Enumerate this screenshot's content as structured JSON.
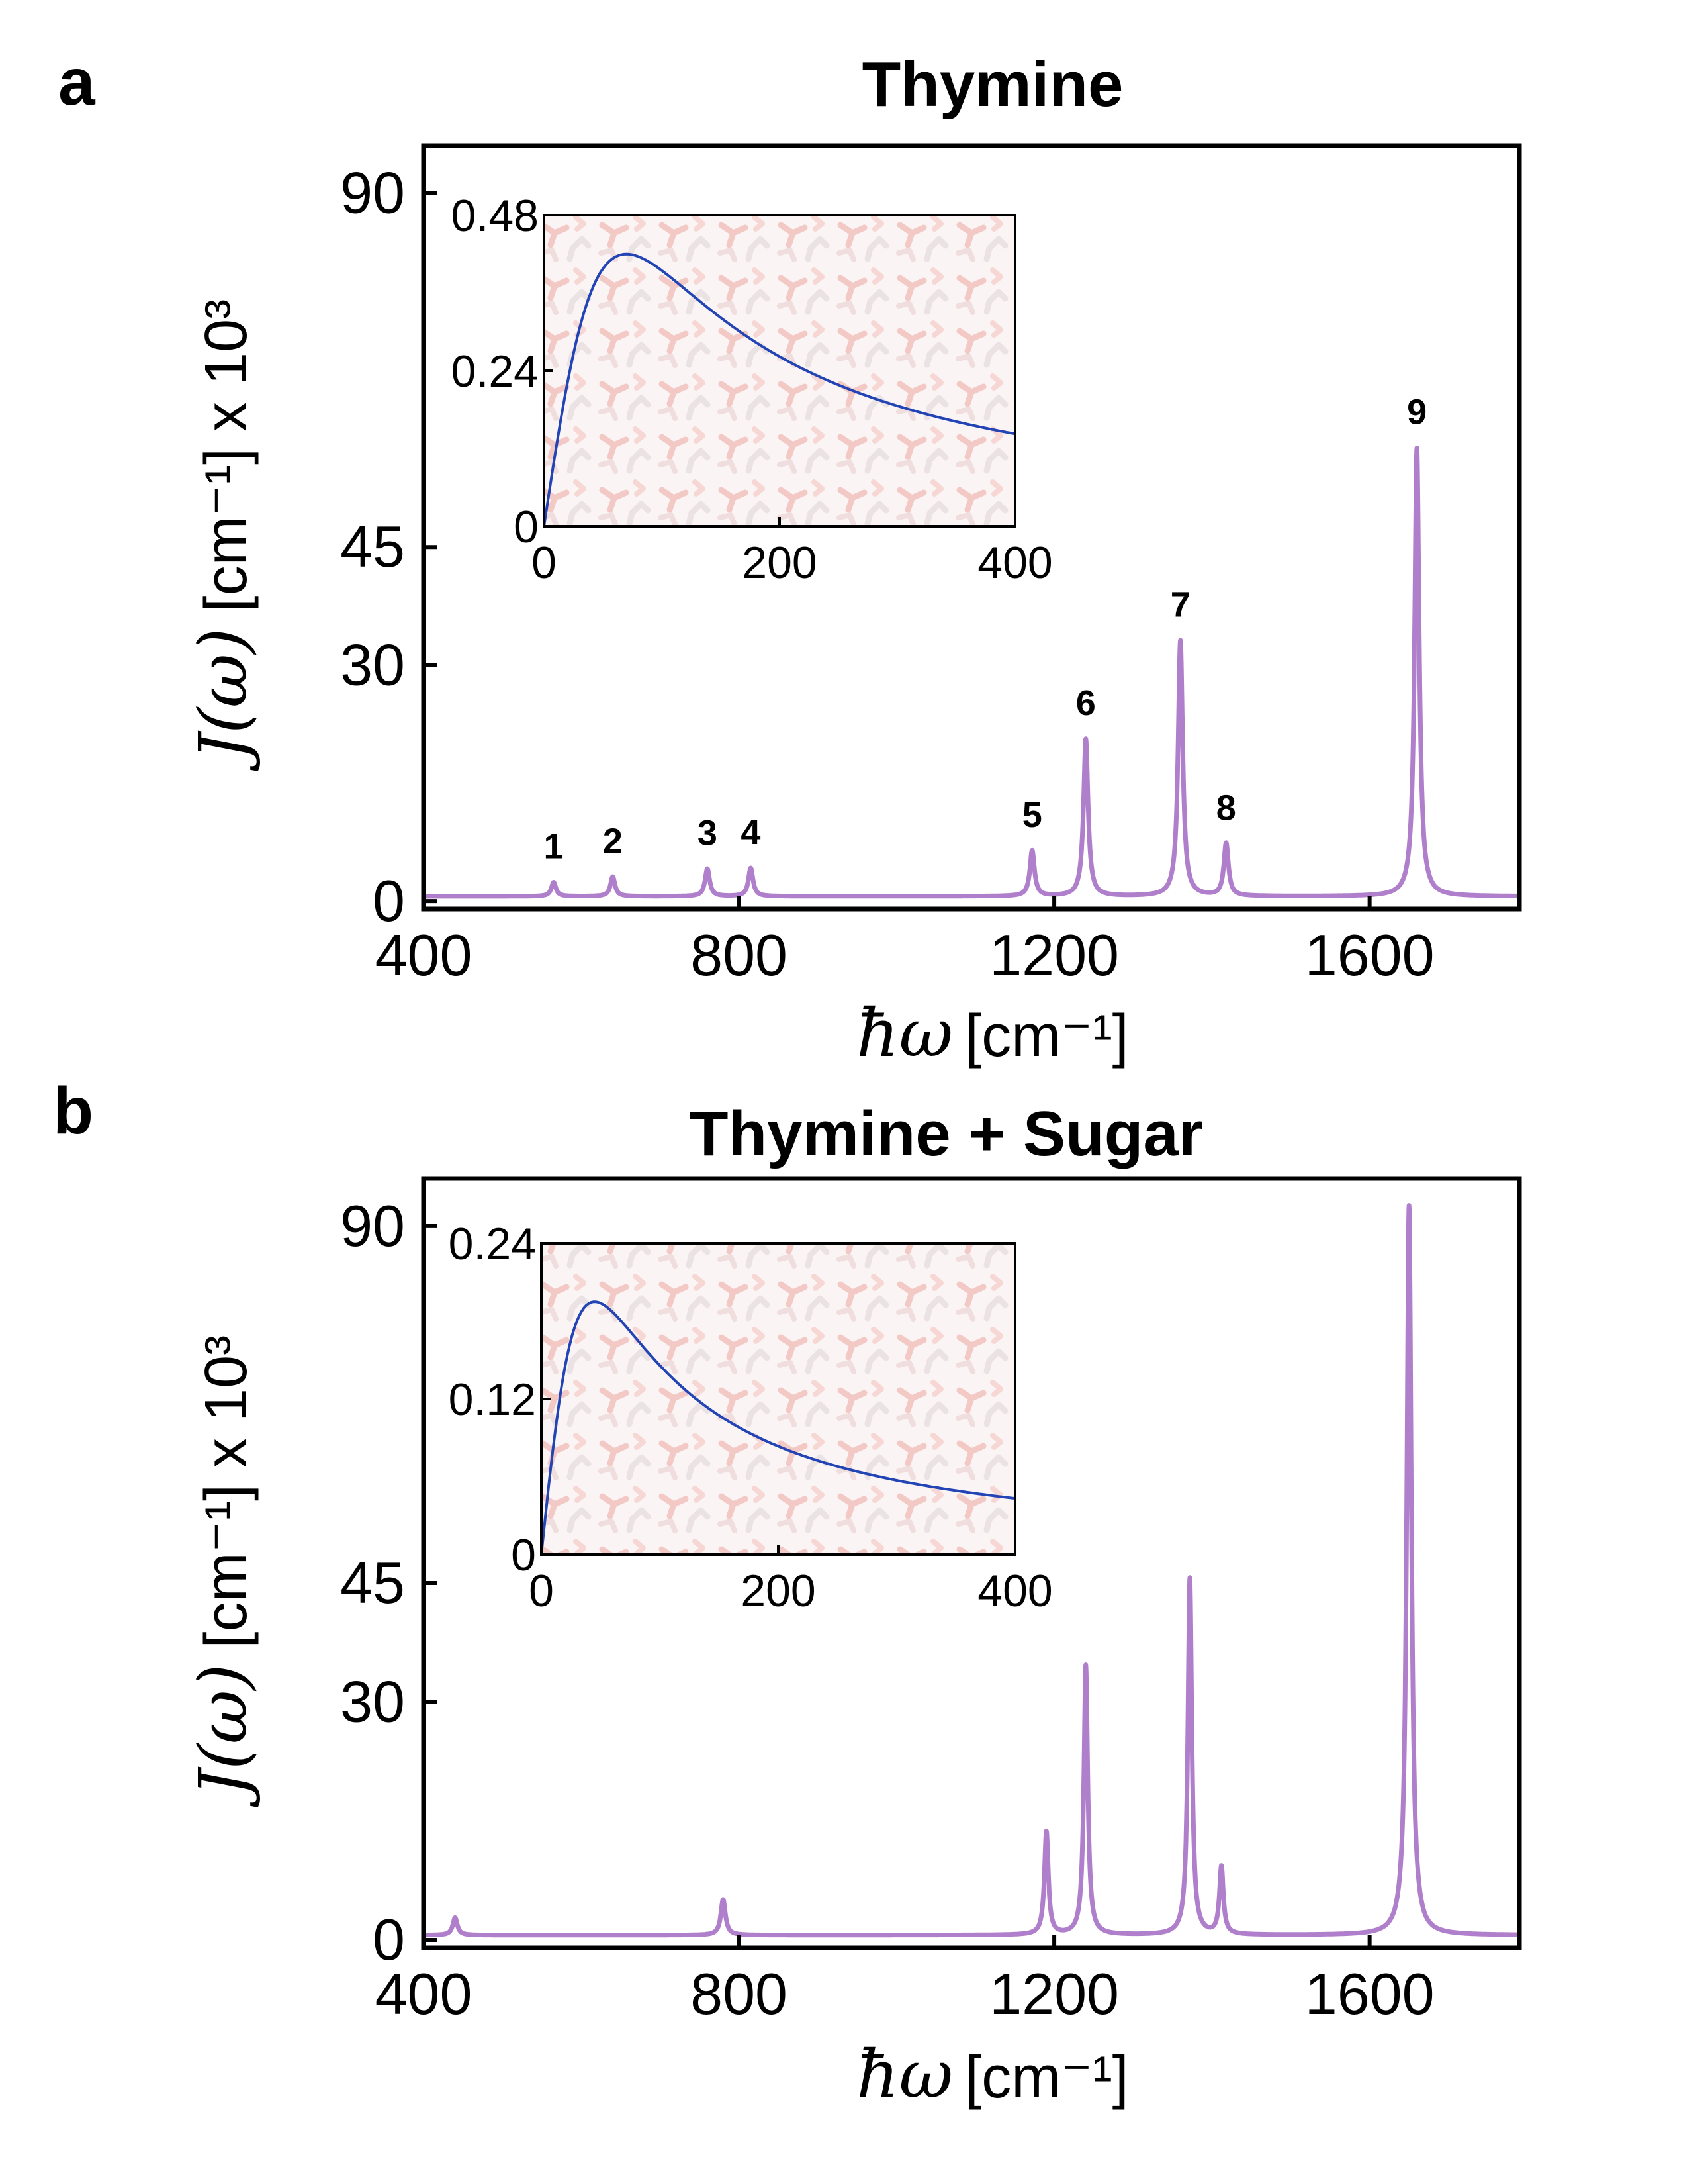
{
  "figure": {
    "shared": {
      "xlabel_symbol": "ħω",
      "xlabel_unit": "[cm⁻¹]",
      "ylabel_symbol": "J(ω)",
      "ylabel_unit": "[cm⁻¹] x 10³"
    }
  },
  "chart_data": [
    {
      "panel": "a",
      "type": "line",
      "title": "Thymine",
      "xlabel": "ħω[cm⁻¹]",
      "ylabel": "J(ω) [cm⁻¹] x 10³",
      "xlim": [
        400,
        1790
      ],
      "ylim": [
        -1,
        96
      ],
      "xticks": [
        "400",
        "800",
        "1200",
        "1600"
      ],
      "yticks": [
        "0",
        "30",
        "45",
        "90"
      ],
      "color": "#b07fcb",
      "baseline": 0.6,
      "peaks": [
        {
          "label": "1",
          "x": 565,
          "height": 1.8,
          "width": 3.5
        },
        {
          "label": "2",
          "x": 640,
          "height": 2.5,
          "width": 3.5
        },
        {
          "label": "3",
          "x": 760,
          "height": 3.5,
          "width": 3.5
        },
        {
          "label": "4",
          "x": 815,
          "height": 3.6,
          "width": 3.5
        },
        {
          "label": "5",
          "x": 1172,
          "height": 5.8,
          "width": 3.5
        },
        {
          "label": "6",
          "x": 1240,
          "height": 20,
          "width": 3.5
        },
        {
          "label": "7",
          "x": 1360,
          "height": 32.5,
          "width": 3.5
        },
        {
          "label": "8",
          "x": 1418,
          "height": 6.7,
          "width": 3.5
        },
        {
          "label": "9",
          "x": 1660,
          "height": 57,
          "width": 3.5
        }
      ],
      "inset": {
        "xlim": [
          0,
          400
        ],
        "ylim": [
          0,
          0.48
        ],
        "xticks": [
          "0",
          "200",
          "400"
        ],
        "yticks": [
          "0",
          "0.24",
          "0.48"
        ],
        "peak_x": 70,
        "peak_y": 0.42,
        "color": "#2344b5"
      }
    },
    {
      "panel": "b",
      "type": "line",
      "title": "Thymine + Sugar",
      "xlabel": "ħω[cm⁻¹]",
      "ylabel": "J(ω) [cm⁻¹] x 10³",
      "xlim": [
        400,
        1790
      ],
      "ylim": [
        -1,
        96
      ],
      "xticks": [
        "400",
        "800",
        "1200",
        "1600"
      ],
      "yticks": [
        "0",
        "30",
        "45",
        "90"
      ],
      "color": "#b07fcb",
      "baseline": 0.6,
      "peaks": [
        {
          "label": "",
          "x": 440,
          "height": 2.2,
          "width": 3.5
        },
        {
          "label": "",
          "x": 780,
          "height": 4.5,
          "width": 3.5
        },
        {
          "label": "",
          "x": 1190,
          "height": 13,
          "width": 3.0
        },
        {
          "label": "",
          "x": 1240,
          "height": 34,
          "width": 3.0
        },
        {
          "label": "",
          "x": 1372,
          "height": 45,
          "width": 3.0
        },
        {
          "label": "",
          "x": 1412,
          "height": 8.5,
          "width": 3.0
        },
        {
          "label": "",
          "x": 1650,
          "height": 92,
          "width": 3.5
        }
      ],
      "inset": {
        "xlim": [
          0,
          400
        ],
        "ylim": [
          0,
          0.24
        ],
        "xticks": [
          "0",
          "200",
          "400"
        ],
        "yticks": [
          "0",
          "0.12",
          "0.24"
        ],
        "peak_x": 45,
        "peak_y": 0.195,
        "color": "#2344b5"
      }
    }
  ]
}
